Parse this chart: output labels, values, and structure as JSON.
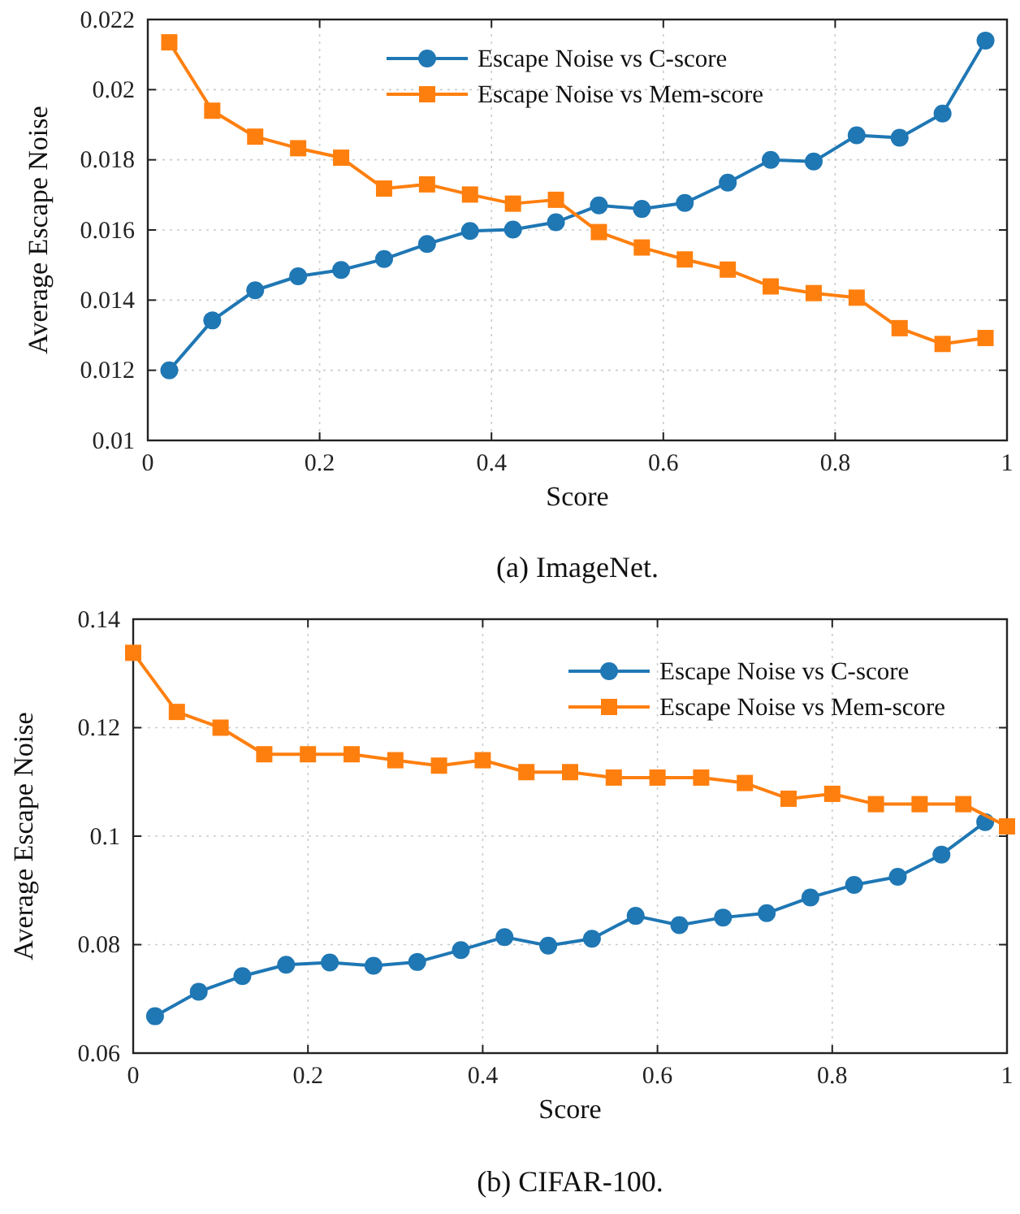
{
  "chart_data": [
    {
      "type": "line",
      "title": "(a) ImageNet.",
      "xlabel": "Score",
      "ylabel": "Average Escape Noise",
      "xlim": [
        0,
        1
      ],
      "xticks": [
        0,
        0.2,
        0.4,
        0.6,
        0.8,
        1
      ],
      "ylim": [
        0.01,
        0.022
      ],
      "yticks": [
        0.01,
        0.012,
        0.014,
        0.016,
        0.018,
        0.02,
        0.022
      ],
      "grid": true,
      "legend": "top",
      "line_style": "solid",
      "x": [
        0.025,
        0.075,
        0.125,
        0.175,
        0.225,
        0.275,
        0.325,
        0.375,
        0.425,
        0.475,
        0.525,
        0.575,
        0.625,
        0.675,
        0.725,
        0.775,
        0.825,
        0.875,
        0.925,
        0.975
      ],
      "series": [
        {
          "name": "Escape Noise vs C-score",
          "color": "#1f77b4",
          "marker": "circle",
          "values": [
            0.012,
            0.01342,
            0.01428,
            0.01468,
            0.01486,
            0.01517,
            0.0156,
            0.01597,
            0.01601,
            0.01622,
            0.0167,
            0.0166,
            0.01677,
            0.01735,
            0.018,
            0.01795,
            0.0187,
            0.01863,
            0.01932,
            0.0214
          ]
        },
        {
          "name": "Escape Noise vs Mem-score",
          "color": "#ff7f0e",
          "marker": "square",
          "values": [
            0.02135,
            0.0194,
            0.01866,
            0.01833,
            0.01806,
            0.01718,
            0.0173,
            0.01701,
            0.01675,
            0.01686,
            0.01594,
            0.0155,
            0.01516,
            0.01487,
            0.01439,
            0.0142,
            0.01407,
            0.0132,
            0.01275,
            0.01292
          ]
        }
      ]
    },
    {
      "type": "line",
      "title": "(b) CIFAR-100.",
      "xlabel": "Score",
      "ylabel": "Average Escape Noise",
      "xlim": [
        0,
        1
      ],
      "xticks": [
        0,
        0.2,
        0.4,
        0.6,
        0.8,
        1
      ],
      "ylim": [
        0.06,
        0.14
      ],
      "yticks": [
        0.06,
        0.08,
        0.1,
        0.12,
        0.14
      ],
      "grid": true,
      "legend": "top right",
      "line_style": "solid",
      "series": [
        {
          "name": "Escape Noise vs C-score",
          "color": "#1f77b4",
          "marker": "circle",
          "x": [
            0.025,
            0.075,
            0.125,
            0.175,
            0.225,
            0.275,
            0.325,
            0.375,
            0.425,
            0.475,
            0.525,
            0.575,
            0.625,
            0.675,
            0.725,
            0.775,
            0.825,
            0.875,
            0.925,
            0.975
          ],
          "values": [
            0.0668,
            0.0713,
            0.0742,
            0.0763,
            0.0767,
            0.0761,
            0.0768,
            0.079,
            0.0814,
            0.0798,
            0.0811,
            0.0853,
            0.0836,
            0.085,
            0.0858,
            0.0887,
            0.091,
            0.0925,
            0.0966,
            0.1026
          ]
        },
        {
          "name": "Escape Noise vs Mem-score",
          "color": "#ff7f0e",
          "marker": "square",
          "x": [
            0,
            0.05,
            0.1,
            0.15,
            0.2,
            0.25,
            0.3,
            0.35,
            0.4,
            0.45,
            0.5,
            0.55,
            0.6,
            0.65,
            0.7,
            0.75,
            0.8,
            0.85,
            0.9,
            0.95,
            1
          ],
          "values": [
            0.1338,
            0.1229,
            0.12,
            0.1151,
            0.1151,
            0.1151,
            0.114,
            0.113,
            0.114,
            0.1118,
            0.1118,
            0.1108,
            0.1108,
            0.1108,
            0.1098,
            0.1069,
            0.1078,
            0.1059,
            0.1059,
            0.1059,
            0.1018
          ]
        }
      ]
    }
  ]
}
